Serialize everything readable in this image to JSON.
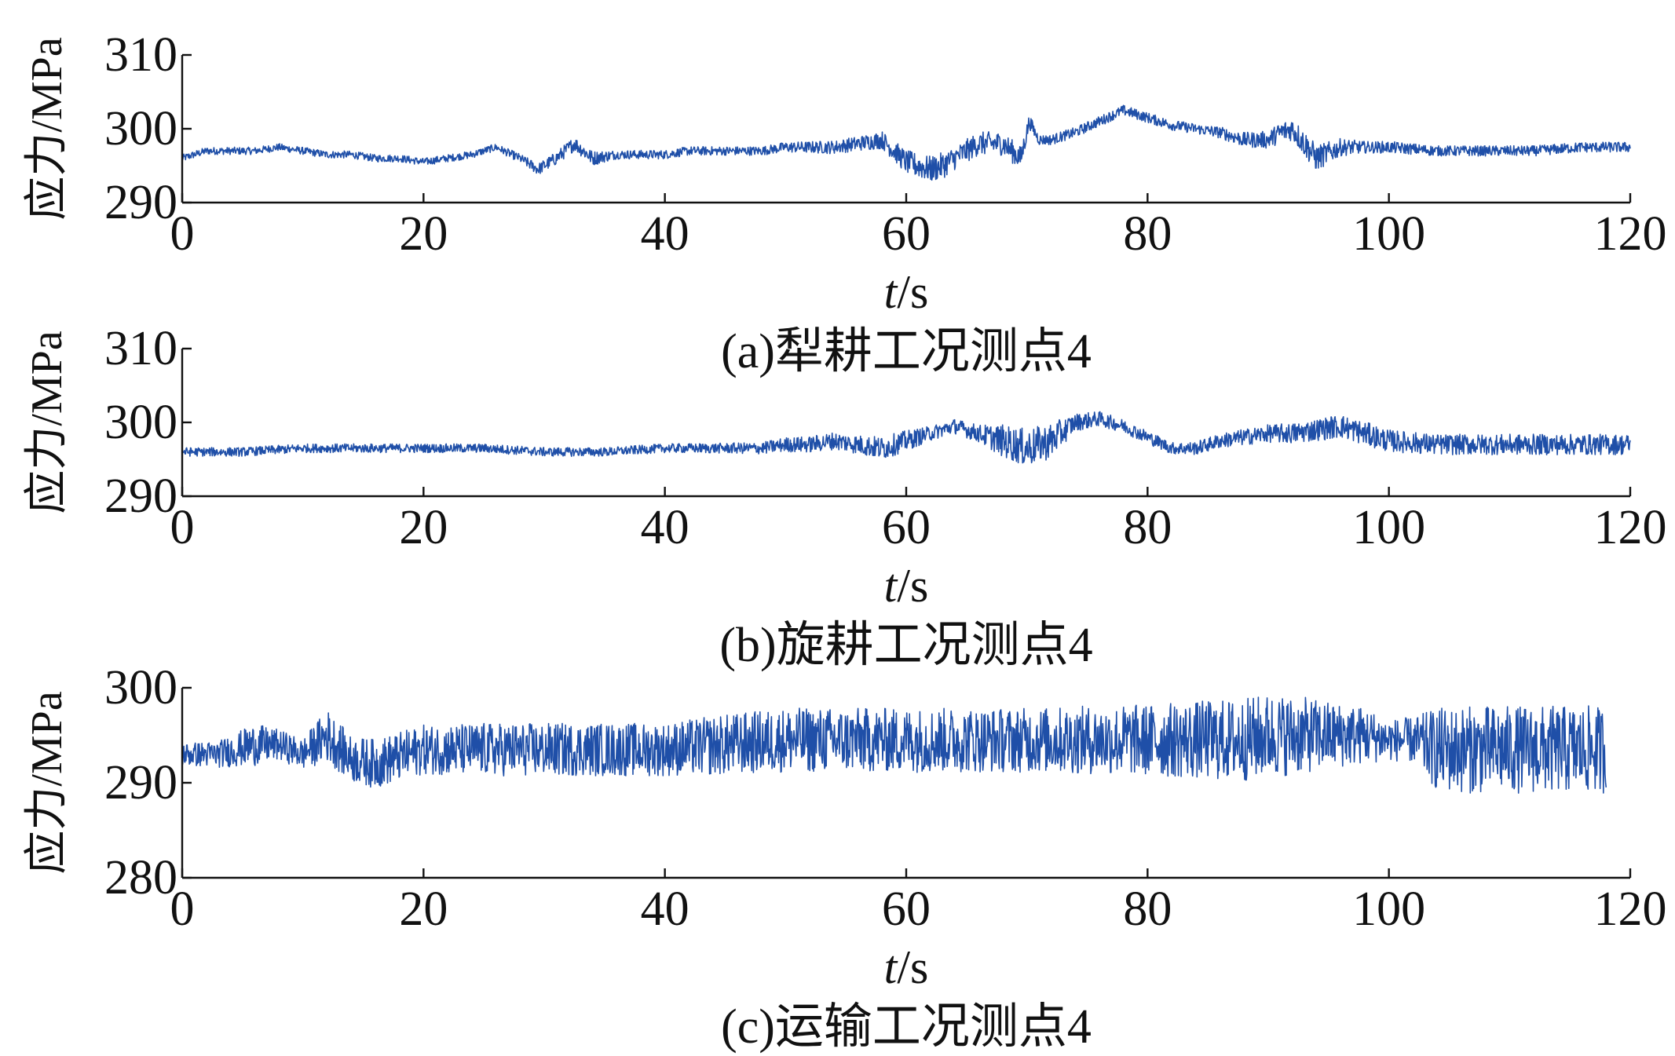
{
  "chart_data": [
    {
      "type": "line",
      "caption": "(a)犁耕工况测点4",
      "ylabel": "应力/MPa",
      "xlabel_italic": "t",
      "xlabel_unit": "/s",
      "xlim": [
        0,
        120
      ],
      "ylim": [
        290,
        310
      ],
      "xticks": [
        0,
        20,
        40,
        60,
        80,
        100,
        120
      ],
      "yticks": [
        290,
        300,
        310
      ],
      "series": [
        {
          "color": "#1f4fa8",
          "x": [
            0,
            2,
            4,
            6,
            8,
            10,
            12,
            14,
            16,
            18,
            20,
            22,
            24,
            26,
            28,
            29.5,
            31,
            32.5,
            34,
            36,
            38,
            40,
            42,
            44,
            46,
            48,
            50,
            52,
            54,
            56,
            58,
            60,
            62,
            63,
            64,
            66,
            68,
            69.5,
            70.2,
            71,
            72,
            74,
            76,
            78,
            80,
            82,
            84,
            86,
            88,
            90,
            91,
            92,
            93,
            94,
            96,
            98,
            100,
            104,
            108,
            112,
            116,
            120
          ],
          "values": [
            296,
            297,
            297,
            297,
            297.5,
            297,
            296.5,
            296.5,
            296,
            296,
            295.5,
            296,
            296.5,
            297.5,
            296,
            294.5,
            296,
            298,
            296,
            296.5,
            296.5,
            296.5,
            297,
            297,
            297,
            297,
            297.5,
            297.5,
            297.5,
            298,
            298.5,
            295.5,
            294.5,
            295,
            296,
            298,
            298,
            296,
            301,
            298.5,
            298.5,
            299.5,
            301,
            302.5,
            301.5,
            300.5,
            300,
            299.5,
            298.5,
            298.5,
            299.5,
            300,
            298,
            296,
            297.5,
            297.5,
            297.5,
            297,
            297,
            297,
            297.5,
            297.5
          ],
          "noise": [
            0.5,
            0.5,
            0.5,
            0.5,
            0.5,
            0.5,
            0.5,
            0.5,
            0.5,
            0.5,
            0.5,
            0.5,
            0.5,
            0.5,
            0.6,
            0.8,
            0.9,
            1.0,
            1.0,
            0.6,
            0.6,
            0.6,
            0.6,
            0.6,
            0.6,
            0.6,
            0.7,
            0.8,
            0.9,
            1.0,
            1.2,
            1.6,
            1.8,
            1.8,
            1.6,
            1.6,
            1.6,
            1.6,
            1.0,
            0.7,
            0.7,
            0.7,
            0.7,
            0.7,
            0.7,
            0.7,
            0.7,
            0.8,
            1.0,
            1.2,
            1.4,
            1.6,
            1.8,
            1.8,
            1.2,
            0.8,
            0.8,
            0.7,
            0.7,
            0.7,
            0.7,
            0.7
          ]
        }
      ]
    },
    {
      "type": "line",
      "caption": "(b)旋耕工况测点4",
      "ylabel": "应力/MPa",
      "xlabel_italic": "t",
      "xlabel_unit": "/s",
      "xlim": [
        0,
        120
      ],
      "ylim": [
        290,
        310
      ],
      "xticks": [
        0,
        20,
        40,
        60,
        80,
        100,
        120
      ],
      "yticks": [
        290,
        300,
        310
      ],
      "series": [
        {
          "color": "#1f4fa8",
          "x": [
            0,
            5,
            10,
            15,
            20,
            25,
            30,
            35,
            40,
            45,
            48,
            50,
            52,
            54,
            56,
            58,
            60,
            62,
            64,
            66,
            68,
            70,
            72,
            74,
            76,
            78,
            80,
            82,
            84,
            86,
            88,
            90,
            92,
            94,
            96,
            98,
            100,
            104,
            108,
            112,
            116,
            120
          ],
          "values": [
            296,
            296,
            296.5,
            296.5,
            296.5,
            296.5,
            296,
            296,
            296.5,
            296.5,
            296.5,
            297,
            297,
            297.5,
            297,
            296.5,
            297.5,
            298.5,
            299.5,
            298.5,
            297.5,
            296.5,
            297.5,
            300,
            300.5,
            299.5,
            298,
            296.5,
            296.5,
            297.5,
            298,
            298.5,
            298.5,
            299,
            299.5,
            298.5,
            297.5,
            297,
            297,
            297,
            297,
            297
          ],
          "noise": [
            0.6,
            0.6,
            0.6,
            0.6,
            0.6,
            0.6,
            0.6,
            0.6,
            0.6,
            0.7,
            0.8,
            1.0,
            1.1,
            1.2,
            1.3,
            1.6,
            1.4,
            1.0,
            1.0,
            1.2,
            2.2,
            2.6,
            2.4,
            1.2,
            1.0,
            0.9,
            0.9,
            0.8,
            0.9,
            1.0,
            1.1,
            1.2,
            1.4,
            1.5,
            1.6,
            1.6,
            1.5,
            1.4,
            1.4,
            1.4,
            1.4,
            1.4
          ]
        }
      ]
    },
    {
      "type": "line",
      "caption": "(c)运输工况测点4",
      "ylabel": "应力/MPa",
      "xlabel_italic": "t",
      "xlabel_unit": "/s",
      "xlim": [
        0,
        120
      ],
      "ylim": [
        280,
        300
      ],
      "xticks": [
        0,
        20,
        40,
        60,
        80,
        100,
        120
      ],
      "yticks": [
        280,
        290,
        300
      ],
      "series": [
        {
          "color": "#1f4fa8",
          "x": [
            0,
            3,
            6,
            8,
            10,
            12,
            14,
            16,
            20,
            25,
            30,
            35,
            40,
            45,
            50,
            55,
            60,
            65,
            70,
            75,
            80,
            85,
            88,
            90,
            92,
            95,
            98,
            100,
            102,
            104,
            106,
            110,
            114,
            118
          ],
          "values": [
            293,
            293,
            294,
            294,
            293,
            295,
            292.5,
            292,
            293.5,
            293.5,
            293.5,
            293.5,
            293.5,
            294,
            294.5,
            294.5,
            294.5,
            294.5,
            294.5,
            294.5,
            294.5,
            294.5,
            294.5,
            295,
            295,
            295,
            295,
            294.5,
            294.5,
            293.5,
            293.5,
            293.5,
            293.5,
            293.5
          ],
          "noise": [
            1.2,
            1.4,
            2.2,
            1.6,
            1.6,
            2.8,
            2.4,
            2.6,
            2.6,
            2.8,
            2.8,
            2.8,
            2.8,
            3.2,
            3.4,
            3.4,
            3.4,
            3.4,
            3.4,
            3.6,
            3.8,
            4.2,
            4.4,
            4.4,
            4.2,
            3.6,
            3.0,
            2.2,
            2.4,
            4.4,
            4.6,
            4.6,
            4.6,
            4.6
          ]
        }
      ]
    }
  ]
}
